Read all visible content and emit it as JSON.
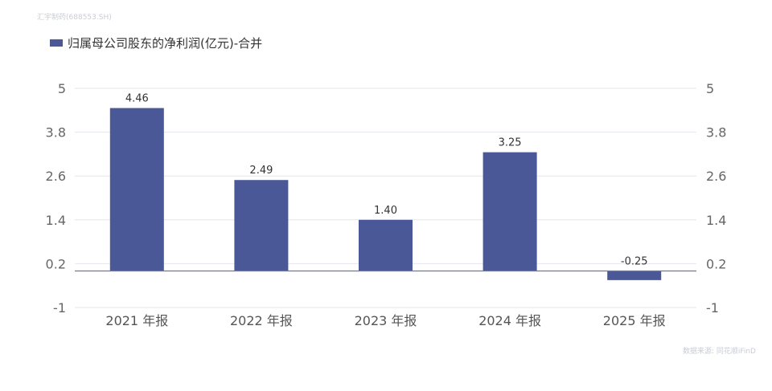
{
  "header": {
    "watermark": "汇宇制药(688553.SH)"
  },
  "footer": {
    "source": "数据来源: 同花顺iFinD"
  },
  "colors": {
    "bar": "#4b5897",
    "grid": "#e3e6ee",
    "axis": "#6a77a8"
  },
  "chart_data": {
    "type": "bar",
    "title": "",
    "categories": [
      "2021 年报",
      "2022 年报",
      "2023 年报",
      "2024 年报",
      "2025 年报"
    ],
    "series": [
      {
        "name": "归属母公司股东的净利润(亿元)-合并",
        "values": [
          4.46,
          2.49,
          1.4,
          3.25,
          -0.25
        ],
        "labels": [
          "4.46",
          "2.49",
          "1.40",
          "3.25",
          "-0.25"
        ]
      }
    ],
    "yticks": [
      5,
      3.8,
      2.6,
      1.4,
      0.2,
      -1
    ],
    "ytick_labels": [
      "5",
      "3.8",
      "2.6",
      "1.4",
      "0.2",
      "-1"
    ],
    "ylim": [
      -1,
      5
    ],
    "grid": true,
    "legend_position": "top-left",
    "dual_y_axis": true
  }
}
